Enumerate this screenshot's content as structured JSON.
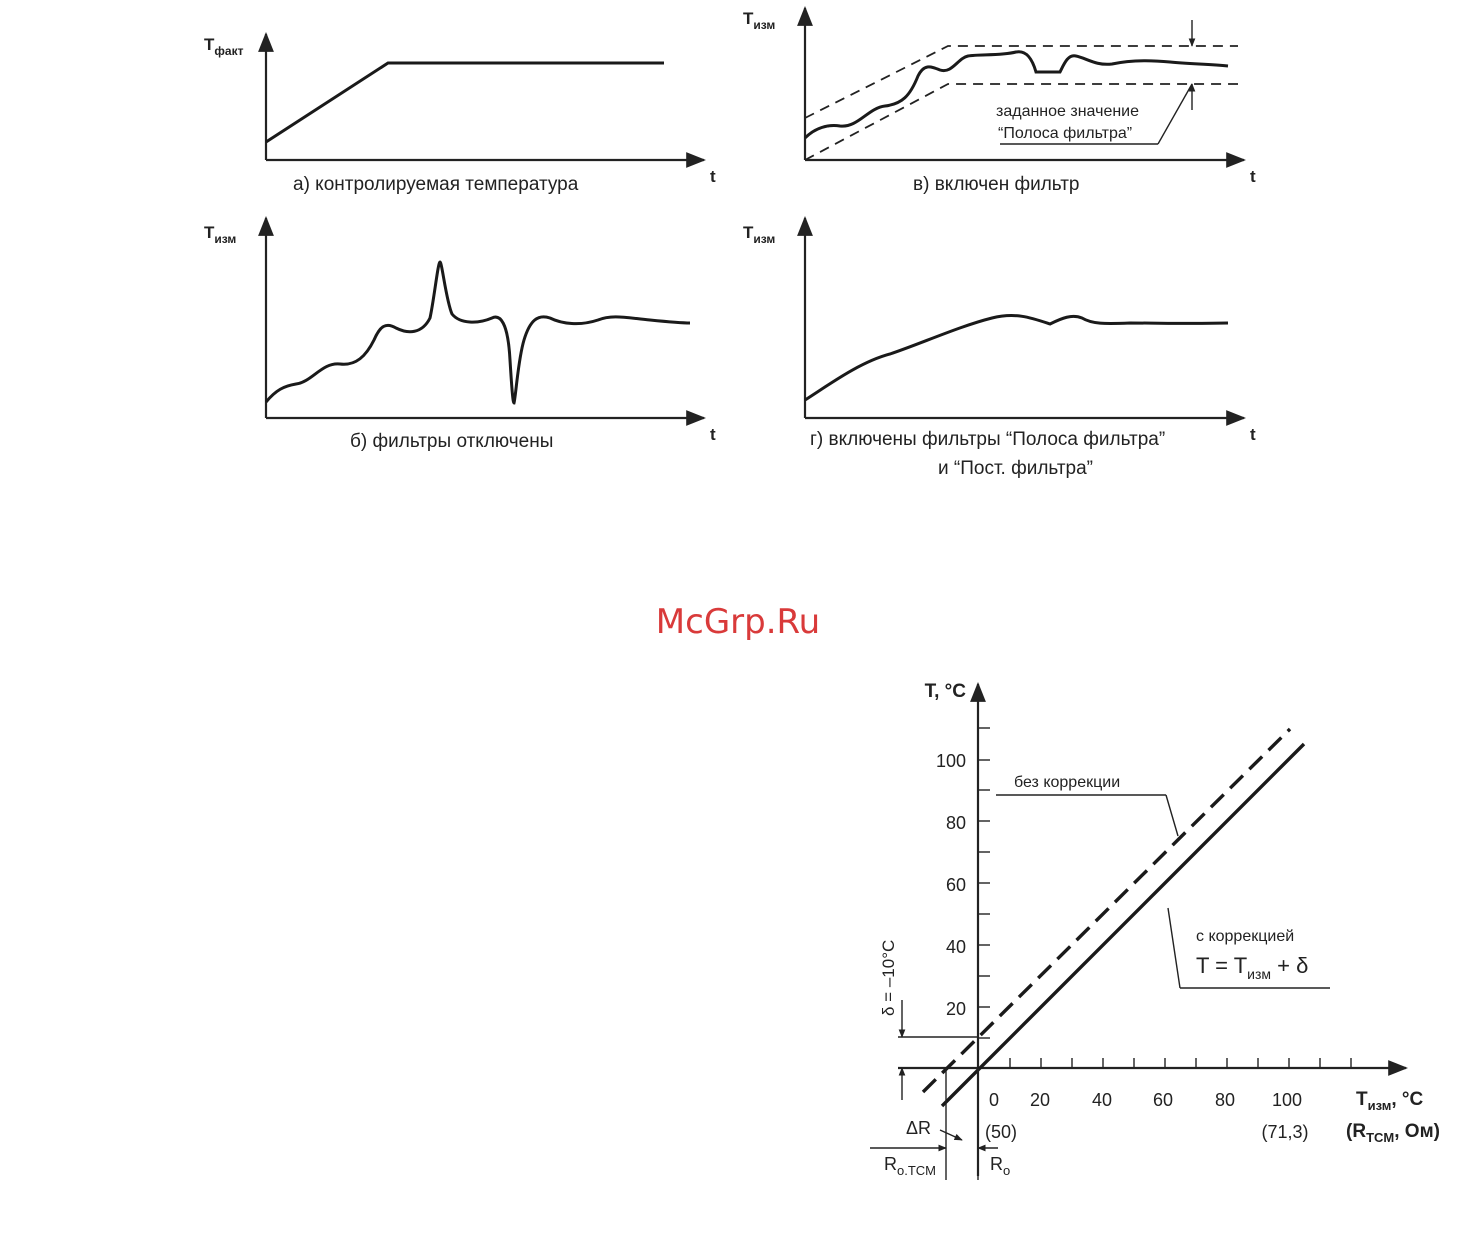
{
  "watermark": "McGrp.Ru",
  "panels": {
    "a": {
      "ylabel_main": "T",
      "ylabel_sub": "факт",
      "xlabel": "t",
      "caption": "а) контролируемая температура"
    },
    "b": {
      "ylabel_main": "T",
      "ylabel_sub": "изм",
      "xlabel": "t",
      "caption": "б) фильтры отключены"
    },
    "v": {
      "ylabel_main": "T",
      "ylabel_sub": "изм",
      "xlabel": "t",
      "caption": "в) включен фильтр",
      "annotation_line1": "заданное значение",
      "annotation_line2": "“Полоса фильтра”"
    },
    "g": {
      "ylabel_main": "T",
      "ylabel_sub": "изм",
      "xlabel": "t",
      "caption_line1": "г) включены фильтры “Полоса фильтра”",
      "caption_line2": "и “Пост. фильтра”"
    }
  },
  "correction_chart": {
    "ylabel": "T, °C",
    "y_ticks": [
      "20",
      "40",
      "60",
      "80",
      "100"
    ],
    "x_ticks": [
      "0",
      "20",
      "40",
      "60",
      "80",
      "100"
    ],
    "x_sub_left": "(50)",
    "x_sub_right": "(71,3)",
    "xlabel_main": "T",
    "xlabel_sub": "изм",
    "xlabel_unit": ", °C",
    "xlabel2_pre": "(R",
    "xlabel2_sub": "TCM",
    "xlabel2_post": ", Ом)",
    "label_no_correction": "без коррекции",
    "label_with_correction": "с коррекцией",
    "formula_pre": "T = T",
    "formula_sub": "изм",
    "formula_post": " + δ",
    "delta_label": "δ = –10°C",
    "delta_r": "ΔR",
    "r0tcm_main": "R",
    "r0tcm_sub": "o.TCM",
    "r0_main": "R",
    "r0_sub": "o"
  }
}
